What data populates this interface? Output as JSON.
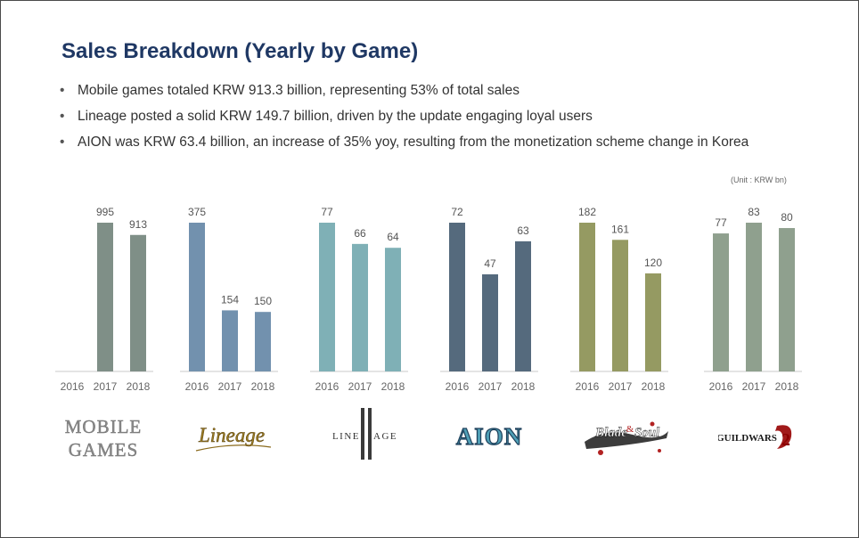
{
  "header": {
    "title": "Sales Breakdown (Yearly by Game)",
    "bullets": [
      "Mobile games totaled KRW 913.3 billion, representing 53% of total sales",
      "Lineage posted a solid KRW 149.7 billion, driven by the update engaging loyal users",
      "AION was KRW 63.4 billion, an increase of 35% yoy, resulting from the monetization scheme change in Korea"
    ],
    "unit": "(Unit : KRW bn)"
  },
  "logos": {
    "mobile_line1": "MOBILE",
    "mobile_line2": "GAMES",
    "lineage": "Lineage",
    "lineage2_left": "LINE",
    "lineage2_right": "AGE",
    "aion": "AION",
    "bns_left": "Blade",
    "bns_amp": "&",
    "bns_right": "Soul",
    "gw_text": "GUILDWARS",
    "gw_num": "2"
  },
  "chart_data": [
    {
      "type": "bar",
      "title": "MOBILE GAMES",
      "categories": [
        "2016",
        "2017",
        "2018"
      ],
      "values": [
        null,
        995,
        913
      ],
      "labels": [
        "",
        "995",
        "913"
      ],
      "color": "#7f8f87"
    },
    {
      "type": "bar",
      "title": "Lineage",
      "categories": [
        "2016",
        "2017",
        "2018"
      ],
      "values": [
        375,
        154,
        150
      ],
      "labels": [
        "375",
        "154",
        "150"
      ],
      "color": "#7291ae"
    },
    {
      "type": "bar",
      "title": "Lineage II",
      "categories": [
        "2016",
        "2017",
        "2018"
      ],
      "values": [
        77,
        66,
        64
      ],
      "labels": [
        "77",
        "66",
        "64"
      ],
      "color": "#7fb0b6"
    },
    {
      "type": "bar",
      "title": "AION",
      "categories": [
        "2016",
        "2017",
        "2018"
      ],
      "values": [
        72,
        47,
        63
      ],
      "labels": [
        "72",
        "47",
        "63"
      ],
      "color": "#556a7d"
    },
    {
      "type": "bar",
      "title": "Blade & Soul",
      "categories": [
        "2016",
        "2017",
        "2018"
      ],
      "values": [
        182,
        161,
        120
      ],
      "labels": [
        "182",
        "161",
        "120"
      ],
      "color": "#959a62"
    },
    {
      "type": "bar",
      "title": "GUILD WARS 2",
      "categories": [
        "2016",
        "2017",
        "2018"
      ],
      "values": [
        77,
        83,
        80
      ],
      "labels": [
        "77",
        "83",
        "80"
      ],
      "color": "#8fa08e"
    }
  ]
}
